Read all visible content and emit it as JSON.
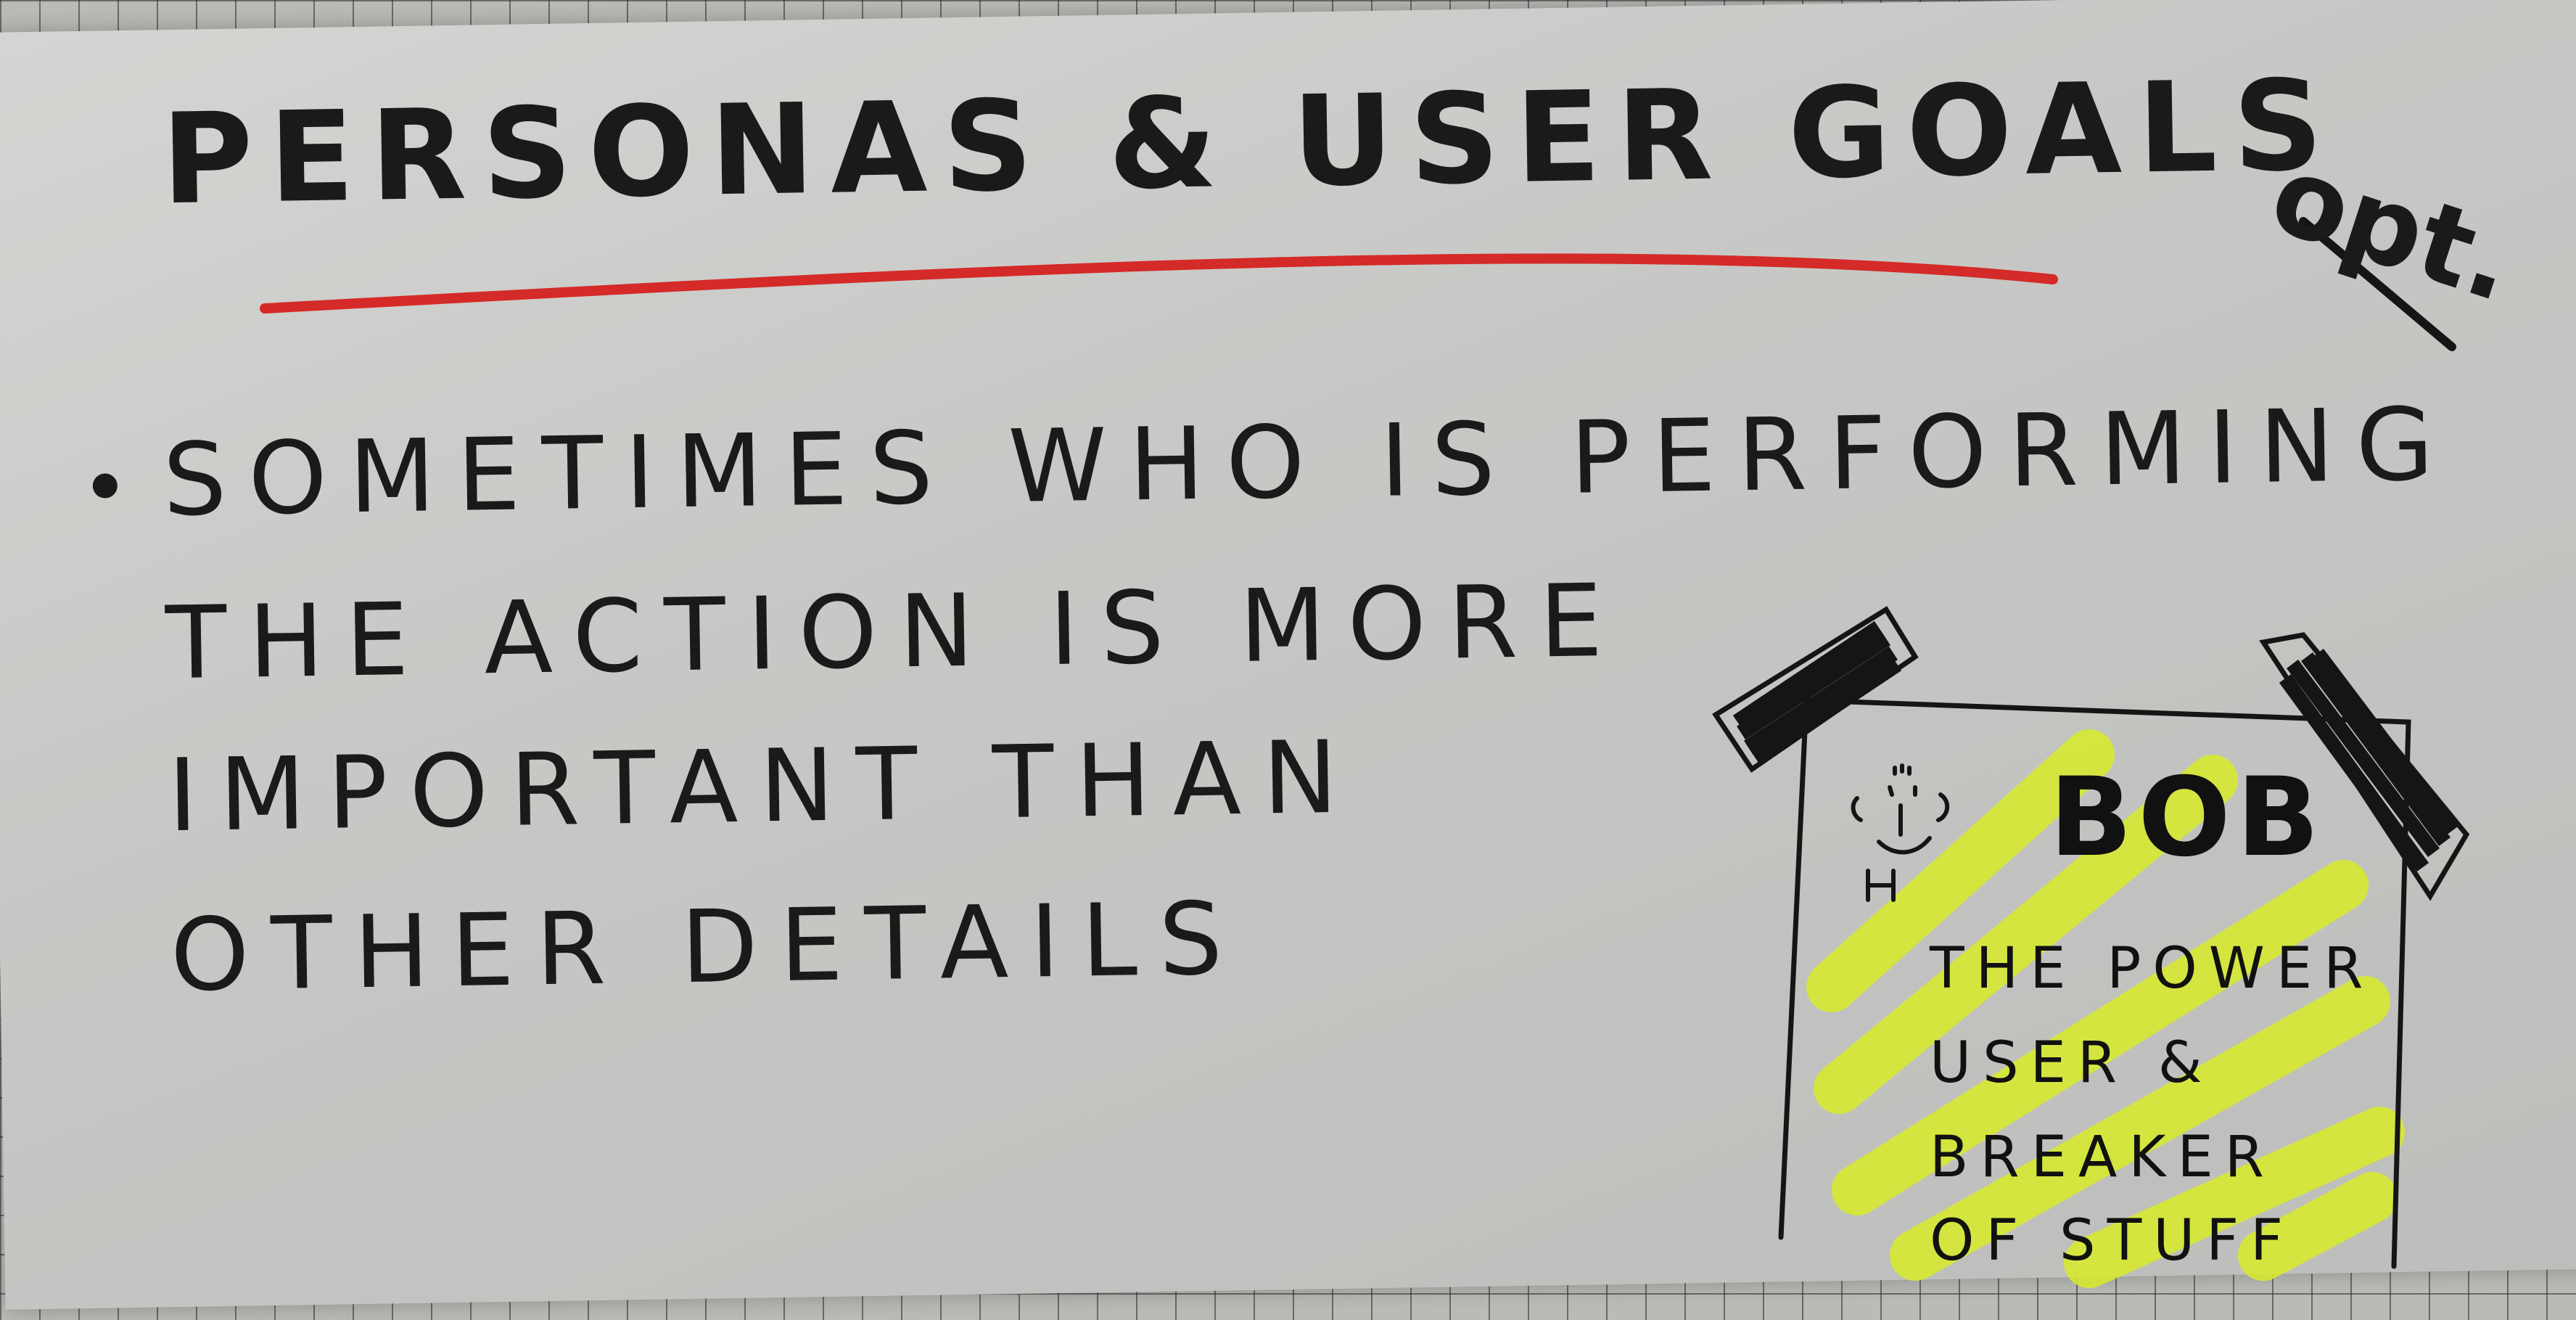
{
  "card": {
    "title": "PERSONAS & USER GOALS",
    "tag": "opt.",
    "body_lines": [
      "SOMETIMES WHO IS PERFORMING",
      "THE ACTION IS MORE",
      "IMPORTANT THAN",
      "OTHER DETAILS"
    ]
  },
  "sticky_note": {
    "name": "BOB",
    "lines": [
      "THE POWER",
      "USER &",
      "BREAKER",
      "OF STUFF"
    ]
  },
  "colors": {
    "ink": "#1a1a1a",
    "underline": "#d42a28",
    "highlighter": "#d8ec2a"
  }
}
